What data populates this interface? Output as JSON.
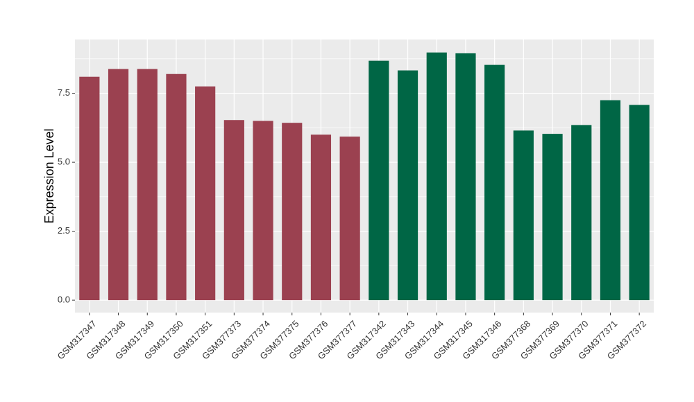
{
  "chart_data": {
    "type": "bar",
    "y_label": "Expression Level",
    "categories": [
      "GSM317347",
      "GSM317348",
      "GSM317349",
      "GSM317350",
      "GSM317351",
      "GSM377373",
      "GSM377374",
      "GSM377375",
      "GSM377376",
      "GSM377377",
      "GSM317342",
      "GSM317343",
      "GSM317344",
      "GSM317345",
      "GSM317346",
      "GSM377368",
      "GSM377369",
      "GSM377370",
      "GSM377371",
      "GSM377372"
    ],
    "values": [
      8.1,
      8.38,
      8.38,
      8.2,
      7.75,
      6.53,
      6.5,
      6.43,
      6.0,
      5.93,
      8.68,
      8.33,
      8.98,
      8.95,
      8.53,
      6.15,
      6.03,
      6.35,
      7.25,
      7.08
    ],
    "colors": [
      "#9b4150",
      "#9b4150",
      "#9b4150",
      "#9b4150",
      "#9b4150",
      "#9b4150",
      "#9b4150",
      "#9b4150",
      "#9b4150",
      "#9b4150",
      "#006645",
      "#006645",
      "#006645",
      "#006645",
      "#006645",
      "#006645",
      "#006645",
      "#006645",
      "#006645",
      "#006645"
    ],
    "ylim": [
      -0.45,
      9.45
    ],
    "yticks": [
      {
        "value": 0,
        "label": "0.0"
      },
      2.5,
      {
        "value": 5,
        "label": "5.0"
      },
      7.5
    ],
    "grid": true
  }
}
